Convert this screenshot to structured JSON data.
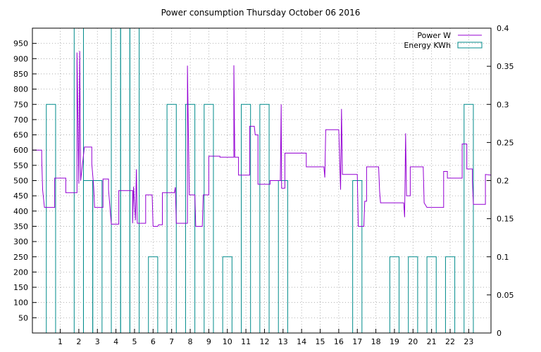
{
  "chart_data": {
    "type": "line",
    "title": "Power consumption Thursday October 06 2016",
    "x_ticks": [
      1,
      2,
      3,
      4,
      5,
      6,
      7,
      8,
      9,
      10,
      11,
      12,
      13,
      14,
      15,
      16,
      17,
      18,
      19,
      20,
      21,
      22,
      23
    ],
    "xlim": [
      -0.5,
      24.2
    ],
    "y_left": {
      "ylim": [
        0,
        1000
      ],
      "ticks": [
        50,
        100,
        150,
        200,
        250,
        300,
        350,
        400,
        450,
        500,
        550,
        600,
        650,
        700,
        750,
        800,
        850,
        900,
        950
      ]
    },
    "y_right": {
      "ylim": [
        0,
        0.4
      ],
      "ticks": [
        0,
        0.05,
        0.1,
        0.15,
        0.2,
        0.25,
        0.3,
        0.35,
        0.4
      ]
    },
    "grid": true,
    "legend_position": "top-right",
    "series": [
      {
        "name": "Power W",
        "color": "#9400d3",
        "axis": "left",
        "style": "step",
        "points": [
          [
            -0.5,
            600
          ],
          [
            0,
            600
          ],
          [
            0,
            575
          ],
          [
            0.05,
            470
          ],
          [
            0.15,
            412
          ],
          [
            0.7,
            412
          ],
          [
            0.7,
            508
          ],
          [
            1.3,
            508
          ],
          [
            1.3,
            460
          ],
          [
            1.9,
            460
          ],
          [
            1.9,
            920
          ],
          [
            2.0,
            490
          ],
          [
            2.05,
            925
          ],
          [
            2.1,
            500
          ],
          [
            2.3,
            610
          ],
          [
            2.7,
            610
          ],
          [
            2.7,
            555
          ],
          [
            2.8,
            480
          ],
          [
            2.85,
            412
          ],
          [
            3.3,
            412
          ],
          [
            3.3,
            505
          ],
          [
            3.6,
            505
          ],
          [
            3.6,
            470
          ],
          [
            3.75,
            357
          ],
          [
            4.15,
            357
          ],
          [
            4.15,
            467
          ],
          [
            4.9,
            467
          ],
          [
            4.9,
            360
          ],
          [
            4.95,
            480
          ],
          [
            5.05,
            370
          ],
          [
            5.1,
            537
          ],
          [
            5.15,
            360
          ],
          [
            5.6,
            360
          ],
          [
            5.6,
            453
          ],
          [
            5.95,
            453
          ],
          [
            6.0,
            350
          ],
          [
            6.25,
            350
          ],
          [
            6.3,
            355
          ],
          [
            6.5,
            355
          ],
          [
            6.5,
            460
          ],
          [
            7.15,
            460
          ],
          [
            7.2,
            478
          ],
          [
            7.25,
            360
          ],
          [
            7.85,
            360
          ],
          [
            7.85,
            877
          ],
          [
            7.95,
            453
          ],
          [
            8.25,
            453
          ],
          [
            8.3,
            350
          ],
          [
            8.65,
            350
          ],
          [
            8.7,
            453
          ],
          [
            9.0,
            453
          ],
          [
            9.0,
            580
          ],
          [
            9.6,
            580
          ],
          [
            9.6,
            577
          ],
          [
            10.35,
            577
          ],
          [
            10.35,
            878
          ],
          [
            10.4,
            577
          ],
          [
            10.6,
            577
          ],
          [
            10.6,
            518
          ],
          [
            11.2,
            518
          ],
          [
            11.2,
            678
          ],
          [
            11.45,
            678
          ],
          [
            11.5,
            650
          ],
          [
            11.65,
            650
          ],
          [
            11.65,
            488
          ],
          [
            12.3,
            488
          ],
          [
            12.3,
            500
          ],
          [
            12.85,
            500
          ],
          [
            12.9,
            750
          ],
          [
            12.92,
            475
          ],
          [
            13.1,
            475
          ],
          [
            13.1,
            590
          ],
          [
            14.25,
            590
          ],
          [
            14.25,
            545
          ],
          [
            15.2,
            545
          ],
          [
            15.25,
            510
          ],
          [
            15.3,
            667
          ],
          [
            16.0,
            667
          ],
          [
            16.1,
            470
          ],
          [
            16.15,
            735
          ],
          [
            16.2,
            520
          ],
          [
            17.0,
            520
          ],
          [
            17.05,
            350
          ],
          [
            17.35,
            350
          ],
          [
            17.4,
            432
          ],
          [
            17.5,
            432
          ],
          [
            17.5,
            545
          ],
          [
            18.15,
            545
          ],
          [
            18.2,
            465
          ],
          [
            18.25,
            427
          ],
          [
            19.5,
            427
          ],
          [
            19.55,
            380
          ],
          [
            19.6,
            655
          ],
          [
            19.65,
            450
          ],
          [
            19.85,
            450
          ],
          [
            19.85,
            545
          ],
          [
            20.55,
            545
          ],
          [
            20.6,
            427
          ],
          [
            20.75,
            412
          ],
          [
            21.65,
            412
          ],
          [
            21.65,
            530
          ],
          [
            21.85,
            530
          ],
          [
            21.85,
            508
          ],
          [
            22.65,
            508
          ],
          [
            22.65,
            620
          ],
          [
            22.9,
            620
          ],
          [
            22.9,
            538
          ],
          [
            23.2,
            538
          ],
          [
            23.2,
            500
          ],
          [
            23.25,
            422
          ],
          [
            23.9,
            422
          ],
          [
            23.9,
            520
          ],
          [
            24.2,
            518
          ]
        ]
      },
      {
        "name": "Energy KWh",
        "color": "#008b8b",
        "axis": "right",
        "style": "impulse-bars",
        "bars": [
          [
            0.5,
            0.3
          ],
          [
            2.0,
            0.4
          ],
          [
            2.5,
            0.2
          ],
          [
            3.0,
            0.2
          ],
          [
            4.0,
            0.4
          ],
          [
            4.5,
            0.4
          ],
          [
            5.0,
            0.4
          ],
          [
            6.0,
            0.1
          ],
          [
            7.0,
            0.3
          ],
          [
            8.0,
            0.3
          ],
          [
            9.0,
            0.3
          ],
          [
            10.0,
            0.1
          ],
          [
            11.0,
            0.3
          ],
          [
            12.0,
            0.3
          ],
          [
            13.0,
            0.2
          ],
          [
            17.0,
            0.2
          ],
          [
            19.0,
            0.1
          ],
          [
            20.0,
            0.1
          ],
          [
            21.0,
            0.1
          ],
          [
            22.0,
            0.1
          ],
          [
            23.0,
            0.3
          ]
        ]
      }
    ]
  }
}
